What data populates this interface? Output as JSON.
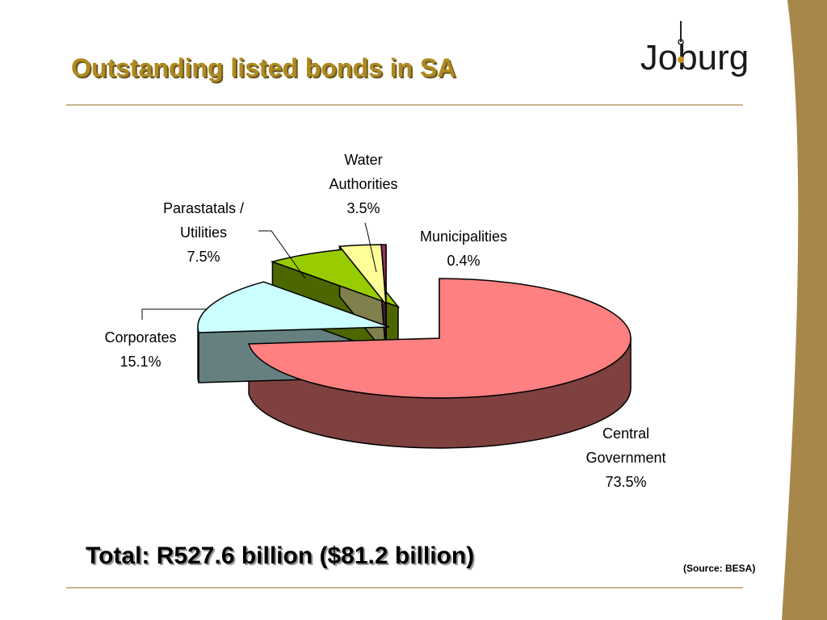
{
  "slide": {
    "title": "Outstanding listed bonds in SA",
    "total": "Total: R527.6 billion ($81.2 billion)",
    "source": "(Source: BESA)",
    "logo_text": "Joburg"
  },
  "colors": {
    "title": "#b08a20",
    "band": "#a8884a",
    "rule": "#c9b48a"
  },
  "chart_data": {
    "type": "pie",
    "style": "3d-exploded",
    "series": [
      {
        "label_lines": [
          "Central",
          "Government"
        ],
        "value": 73.5,
        "value_label": "73.5%",
        "top_color": "#ff8080",
        "side_color": "#7f4040"
      },
      {
        "label_lines": [
          "Corporates"
        ],
        "value": 15.1,
        "value_label": "15.1%",
        "top_color": "#ccffff",
        "side_color": "#668080"
      },
      {
        "label_lines": [
          "Parastatals /",
          "Utilities"
        ],
        "value": 7.5,
        "value_label": "7.5%",
        "top_color": "#99cc00",
        "side_color": "#4c6600"
      },
      {
        "label_lines": [
          "Water",
          "Authorities"
        ],
        "value": 3.5,
        "value_label": "3.5%",
        "top_color": "#ffff99",
        "side_color": "#80804c"
      },
      {
        "label_lines": [
          "Municipalities"
        ],
        "value": 0.4,
        "value_label": "0.4%",
        "top_color": "#993366",
        "side_color": "#4c1933"
      }
    ]
  }
}
